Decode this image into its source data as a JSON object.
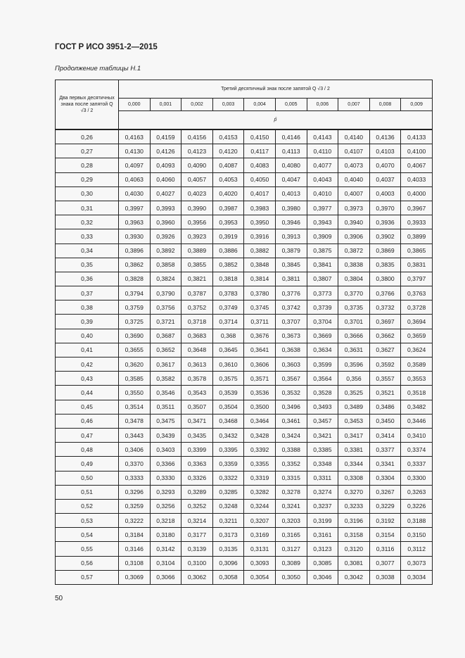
{
  "header": {
    "doc_title": "ГОСТ Р ИСО 3951-2—2015",
    "caption": "Продолжение таблицы Н.1"
  },
  "table": {
    "row_header": "Два первых десятичных знака после запятой Q √3 / 2",
    "col_group_header": "Третий десятичный знак после запятой Q √3 / 2",
    "columns": [
      "0,000",
      "0,001",
      "0,002",
      "0,003",
      "0,004",
      "0,005",
      "0,006",
      "0,007",
      "0,008",
      "0,009"
    ],
    "value_symbol": "p̂",
    "rows": [
      {
        "key": "0,26",
        "values": [
          "0,4163",
          "0,4159",
          "0,4156",
          "0,4153",
          "0,4150",
          "0,4146",
          "0,4143",
          "0,4140",
          "0,4136",
          "0,4133"
        ]
      },
      {
        "key": "0,27",
        "values": [
          "0,4130",
          "0,4126",
          "0,4123",
          "0,4120",
          "0,4117",
          "0,4113",
          "0,4110",
          "0,4107",
          "0,4103",
          "0,4100"
        ]
      },
      {
        "key": "0,28",
        "values": [
          "0,4097",
          "0,4093",
          "0,4090",
          "0,4087",
          "0,4083",
          "0,4080",
          "0,4077",
          "0,4073",
          "0,4070",
          "0,4067"
        ]
      },
      {
        "key": "0,29",
        "values": [
          "0,4063",
          "0,4060",
          "0,4057",
          "0,4053",
          "0,4050",
          "0,4047",
          "0,4043",
          "0,4040",
          "0,4037",
          "0,4033"
        ]
      },
      {
        "key": "0,30",
        "values": [
          "0,4030",
          "0,4027",
          "0,4023",
          "0,4020",
          "0,4017",
          "0,4013",
          "0,4010",
          "0,4007",
          "0,4003",
          "0,4000"
        ]
      },
      {
        "key": "0,31",
        "values": [
          "0,3997",
          "0,3993",
          "0,3990",
          "0,3987",
          "0,3983",
          "0,3980",
          "0,3977",
          "0,3973",
          "0,3970",
          "0,3967"
        ]
      },
      {
        "key": "0,32",
        "values": [
          "0,3963",
          "0,3960",
          "0,3956",
          "0,3953",
          "0,3950",
          "0,3946",
          "0,3943",
          "0,3940",
          "0,3936",
          "0,3933"
        ]
      },
      {
        "key": "0,33",
        "values": [
          "0,3930",
          "0,3926",
          "0,3923",
          "0,3919",
          "0,3916",
          "0,3913",
          "0,3909",
          "0,3906",
          "0,3902",
          "0,3899"
        ]
      },
      {
        "key": "0,34",
        "values": [
          "0,3896",
          "0,3892",
          "0,3889",
          "0,3886",
          "0,3882",
          "0,3879",
          "0,3875",
          "0,3872",
          "0,3869",
          "0,3865"
        ]
      },
      {
        "key": "0,35",
        "values": [
          "0,3862",
          "0,3858",
          "0,3855",
          "0,3852",
          "0,3848",
          "0,3845",
          "0,3841",
          "0,3838",
          "0,3835",
          "0,3831"
        ]
      },
      {
        "key": "0,36",
        "values": [
          "0,3828",
          "0,3824",
          "0,3821",
          "0,3818",
          "0,3814",
          "0,3811",
          "0,3807",
          "0,3804",
          "0,3800",
          "0,3797"
        ]
      },
      {
        "key": "0,37",
        "values": [
          "0,3794",
          "0,3790",
          "0,3787",
          "0,3783",
          "0,3780",
          "0,3776",
          "0,3773",
          "0,3770",
          "0,3766",
          "0,3763"
        ]
      },
      {
        "key": "0,38",
        "values": [
          "0,3759",
          "0,3756",
          "0,3752",
          "0,3749",
          "0,3745",
          "0,3742",
          "0,3739",
          "0,3735",
          "0,3732",
          "0,3728"
        ]
      },
      {
        "key": "0,39",
        "values": [
          "0,3725",
          "0,3721",
          "0,3718",
          "0,3714",
          "0,3711",
          "0,3707",
          "0,3704",
          "0,3701",
          "0,3697",
          "0,3694"
        ]
      },
      {
        "key": "0,40",
        "values": [
          "0,3690",
          "0,3687",
          "0,3683",
          "0,368",
          "0,3676",
          "0,3673",
          "0,3669",
          "0,3666",
          "0,3662",
          "0,3659"
        ]
      },
      {
        "key": "0,41",
        "values": [
          "0,3655",
          "0,3652",
          "0,3648",
          "0,3645",
          "0,3641",
          "0,3638",
          "0,3634",
          "0,3631",
          "0,3627",
          "0,3624"
        ]
      },
      {
        "key": "0,42",
        "values": [
          "0,3620",
          "0,3617",
          "0,3613",
          "0,3610",
          "0,3606",
          "0,3603",
          "0,3599",
          "0,3596",
          "0,3592",
          "0,3589"
        ]
      },
      {
        "key": "0,43",
        "values": [
          "0,3585",
          "0,3582",
          "0,3578",
          "0,3575",
          "0,3571",
          "0,3567",
          "0,3564",
          "0,356",
          "0,3557",
          "0,3553"
        ]
      },
      {
        "key": "0,44",
        "values": [
          "0,3550",
          "0,3546",
          "0,3543",
          "0,3539",
          "0,3536",
          "0,3532",
          "0,3528",
          "0,3525",
          "0,3521",
          "0,3518"
        ]
      },
      {
        "key": "0,45",
        "values": [
          "0,3514",
          "0,3511",
          "0,3507",
          "0,3504",
          "0,3500",
          "0,3496",
          "0,3493",
          "0,3489",
          "0,3486",
          "0,3482"
        ]
      },
      {
        "key": "0,46",
        "values": [
          "0,3478",
          "0,3475",
          "0,3471",
          "0,3468",
          "0,3464",
          "0,3461",
          "0,3457",
          "0,3453",
          "0,3450",
          "0,3446"
        ]
      },
      {
        "key": "0,47",
        "values": [
          "0,3443",
          "0,3439",
          "0,3435",
          "0,3432",
          "0,3428",
          "0,3424",
          "0,3421",
          "0,3417",
          "0,3414",
          "0,3410"
        ]
      },
      {
        "key": "0,48",
        "values": [
          "0,3406",
          "0,3403",
          "0,3399",
          "0,3395",
          "0,3392",
          "0,3388",
          "0,3385",
          "0,3381",
          "0,3377",
          "0,3374"
        ]
      },
      {
        "key": "0,49",
        "values": [
          "0,3370",
          "0,3366",
          "0,3363",
          "0,3359",
          "0,3355",
          "0,3352",
          "0,3348",
          "0,3344",
          "0,3341",
          "0,3337"
        ]
      },
      {
        "key": "0,50",
        "values": [
          "0,3333",
          "0,3330",
          "0,3326",
          "0,3322",
          "0,3319",
          "0,3315",
          "0,3311",
          "0,3308",
          "0,3304",
          "0,3300"
        ]
      },
      {
        "key": "0,51",
        "values": [
          "0,3296",
          "0,3293",
          "0,3289",
          "0,3285",
          "0,3282",
          "0,3278",
          "0,3274",
          "0,3270",
          "0,3267",
          "0,3263"
        ]
      },
      {
        "key": "0,52",
        "values": [
          "0,3259",
          "0,3256",
          "0,3252",
          "0,3248",
          "0,3244",
          "0,3241",
          "0,3237",
          "0,3233",
          "0,3229",
          "0,3226"
        ]
      },
      {
        "key": "0,53",
        "values": [
          "0,3222",
          "0,3218",
          "0,3214",
          "0,3211",
          "0,3207",
          "0,3203",
          "0,3199",
          "0,3196",
          "0,3192",
          "0,3188"
        ]
      },
      {
        "key": "0,54",
        "values": [
          "0,3184",
          "0,3180",
          "0,3177",
          "0,3173",
          "0,3169",
          "0,3165",
          "0,3161",
          "0,3158",
          "0,3154",
          "0,3150"
        ]
      },
      {
        "key": "0,55",
        "values": [
          "0,3146",
          "0,3142",
          "0,3139",
          "0,3135",
          "0,3131",
          "0,3127",
          "0,3123",
          "0,3120",
          "0,3116",
          "0,3112"
        ]
      },
      {
        "key": "0,56",
        "values": [
          "0,3108",
          "0,3104",
          "0,3100",
          "0,3096",
          "0,3093",
          "0,3089",
          "0,3085",
          "0,3081",
          "0,3077",
          "0,3073"
        ]
      },
      {
        "key": "0,57",
        "values": [
          "0,3069",
          "0,3066",
          "0,3062",
          "0,3058",
          "0,3054",
          "0,3050",
          "0,3046",
          "0,3042",
          "0,3038",
          "0,3034"
        ]
      }
    ]
  },
  "footer": {
    "page_number": "50"
  }
}
